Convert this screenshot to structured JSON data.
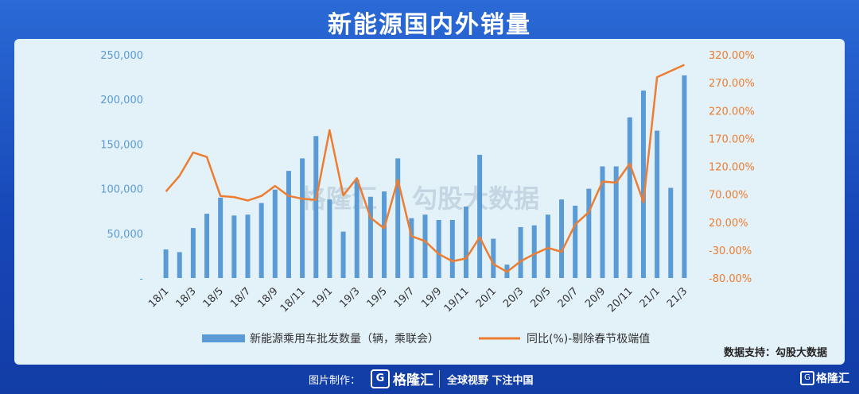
{
  "title": "新能源国内外销量",
  "source": "数据支持：勾股大数据",
  "watermark": {
    "brand": "格隆汇",
    "text": "勾股大数据"
  },
  "footer": {
    "maker_label": "图片制作：",
    "logo_letter": "G",
    "brand": "格隆汇",
    "slogan": "全球视野 下注中国",
    "corner_brand": "格隆汇"
  },
  "colors": {
    "bar": "#5b9bd5",
    "line": "#ed7d31",
    "left_axis": "#5b9bd5",
    "right_axis": "#ed7d31",
    "tick": "#333333"
  },
  "chart_data": {
    "type": "bar",
    "categories": [
      "18/1",
      "18/2",
      "18/3",
      "18/4",
      "18/5",
      "18/6",
      "18/7",
      "18/8",
      "18/9",
      "18/10",
      "18/11",
      "18/12",
      "19/1",
      "19/2",
      "19/3",
      "19/4",
      "19/5",
      "19/6",
      "19/7",
      "19/8",
      "19/9",
      "19/10",
      "19/11",
      "19/12",
      "20/1",
      "20/2",
      "20/3",
      "20/4",
      "20/5",
      "20/6",
      "20/7",
      "20/8",
      "20/9",
      "20/10",
      "20/11",
      "20/12",
      "21/1",
      "21/2",
      "21/3"
    ],
    "x_tick_labels": [
      "18/1",
      "18/3",
      "18/5",
      "18/7",
      "18/9",
      "18/11",
      "19/1",
      "19/3",
      "19/5",
      "19/7",
      "19/9",
      "19/11",
      "20/1",
      "20/3",
      "20/5",
      "20/7",
      "20/9",
      "20/11",
      "21/1",
      "21/3"
    ],
    "series": [
      {
        "name": "新能源乘用车批发数量（辆，乘联会）",
        "type": "bar",
        "axis": "left",
        "values": [
          32000,
          29000,
          56000,
          72000,
          90000,
          70000,
          71000,
          84000,
          99000,
          120000,
          134000,
          159000,
          88000,
          52000,
          110000,
          91000,
          97000,
          134000,
          67000,
          71000,
          65000,
          65000,
          80000,
          138000,
          44000,
          15000,
          57000,
          59000,
          71000,
          88000,
          81000,
          100000,
          125000,
          125000,
          180000,
          210000,
          165000,
          101000,
          227000
        ]
      },
      {
        "name": "同比(%)-剔除春节极端值",
        "type": "line",
        "axis": "right",
        "values": [
          75,
          103,
          145,
          137,
          67,
          65,
          59,
          67,
          85,
          67,
          62,
          60,
          185,
          68,
          99,
          28,
          9,
          96,
          -5,
          -14,
          -37,
          -50,
          -45,
          -7,
          -55,
          -69,
          -50,
          -37,
          -26,
          -33,
          16,
          38,
          93,
          91,
          125,
          56,
          280,
          291,
          302
        ]
      }
    ],
    "y_left": {
      "ylim": [
        0,
        250000
      ],
      "ticks": [
        0,
        50000,
        100000,
        150000,
        200000,
        250000
      ],
      "tick_labels": [
        "-",
        "50,000",
        "100,000",
        "150,000",
        "200,000",
        "250,000"
      ]
    },
    "y_right": {
      "ylim": [
        -80,
        320
      ],
      "ticks": [
        -80,
        -30,
        20,
        70,
        120,
        170,
        220,
        270,
        320
      ],
      "tick_labels": [
        "-80.00%",
        "-30.00%",
        "20.00%",
        "70.00%",
        "120.00%",
        "170.00%",
        "220.00%",
        "270.00%",
        "320.00%"
      ]
    },
    "legend_position": "bottom",
    "grid": false
  }
}
